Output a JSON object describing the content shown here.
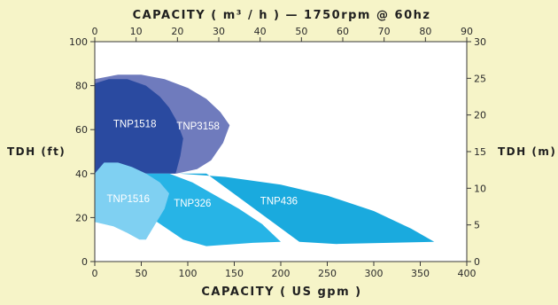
{
  "chart_data": {
    "type": "area",
    "title": "CAPACITY ( m³ / h ) — 1750rpm @ 60hz",
    "xlabel": "CAPACITY ( US gpm )",
    "ylabel_left": "TDH (ft)",
    "ylabel_right": "TDH (m)",
    "x_bottom": {
      "min": 0,
      "max": 400,
      "ticks": [
        0,
        50,
        100,
        150,
        200,
        250,
        300,
        350,
        400
      ]
    },
    "x_top": {
      "min": 0,
      "max": 90,
      "ticks": [
        0,
        10,
        20,
        30,
        40,
        50,
        60,
        70,
        80,
        90
      ]
    },
    "y_left": {
      "min": 0,
      "max": 100,
      "ticks": [
        0,
        20,
        40,
        60,
        80,
        100
      ]
    },
    "y_right": {
      "min": 0,
      "max": 30,
      "ticks": [
        0,
        5,
        10,
        15,
        20,
        25,
        30
      ]
    },
    "grid": false,
    "series": [
      {
        "name": "TNP3158",
        "color": "#6f7bbd",
        "label_pos": [
          111,
          60
        ],
        "points": [
          [
            0,
            83
          ],
          [
            25,
            85
          ],
          [
            50,
            85
          ],
          [
            75,
            83
          ],
          [
            100,
            79
          ],
          [
            120,
            74
          ],
          [
            135,
            68
          ],
          [
            145,
            62
          ],
          [
            138,
            54
          ],
          [
            125,
            46
          ],
          [
            110,
            42
          ],
          [
            88,
            40
          ],
          [
            70,
            40
          ],
          [
            0,
            40
          ]
        ]
      },
      {
        "name": "TNP1518",
        "color": "#2a4aa0",
        "label_pos": [
          43,
          61
        ],
        "points": [
          [
            0,
            81
          ],
          [
            15,
            83
          ],
          [
            35,
            83
          ],
          [
            55,
            80
          ],
          [
            70,
            75
          ],
          [
            80,
            70
          ],
          [
            88,
            64
          ],
          [
            95,
            56
          ],
          [
            92,
            48
          ],
          [
            87,
            40
          ],
          [
            0,
            40
          ]
        ]
      },
      {
        "name": "TNP436",
        "color": "#1aaade",
        "label_pos": [
          198,
          26
        ],
        "points": [
          [
            90,
            40
          ],
          [
            140,
            38.5
          ],
          [
            200,
            35
          ],
          [
            250,
            30
          ],
          [
            300,
            23
          ],
          [
            340,
            15
          ],
          [
            365,
            9
          ],
          [
            260,
            8
          ],
          [
            220,
            9
          ],
          [
            120,
            40
          ]
        ]
      },
      {
        "name": "TNP326",
        "color": "#27b4e6",
        "label_pos": [
          105,
          25
        ],
        "points": [
          [
            30,
            40
          ],
          [
            60,
            40
          ],
          [
            80,
            40
          ],
          [
            105,
            36
          ],
          [
            130,
            30
          ],
          [
            155,
            24
          ],
          [
            180,
            17
          ],
          [
            200,
            9
          ],
          [
            170,
            8.5
          ],
          [
            120,
            7
          ],
          [
            95,
            10
          ],
          [
            60,
            20
          ],
          [
            30,
            23
          ]
        ]
      },
      {
        "name": "TNP1516",
        "color": "#7fd0f2",
        "label_pos": [
          36,
          27
        ],
        "points": [
          [
            0,
            40
          ],
          [
            10,
            45
          ],
          [
            25,
            45
          ],
          [
            40,
            43
          ],
          [
            55,
            40
          ],
          [
            70,
            36
          ],
          [
            80,
            31
          ],
          [
            75,
            24
          ],
          [
            65,
            17
          ],
          [
            55,
            10
          ],
          [
            48,
            10
          ],
          [
            35,
            13
          ],
          [
            20,
            16
          ],
          [
            0,
            18
          ]
        ]
      }
    ]
  }
}
